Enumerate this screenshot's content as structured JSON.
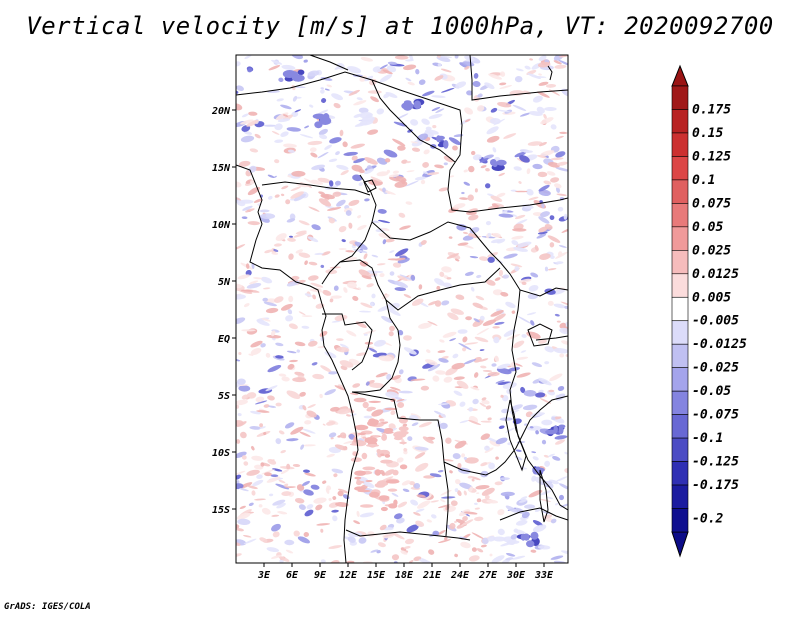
{
  "title": "Vertical velocity [m/s] at 1000hPa, VT: 2020092700",
  "footer": "GrADS: IGES/COLA",
  "map": {
    "lat_labels": [
      "20N",
      "15N",
      "10N",
      "5N",
      "EQ",
      "5S",
      "10S",
      "15S"
    ],
    "lon_labels": [
      "3E",
      "6E",
      "9E",
      "12E",
      "15E",
      "18E",
      "21E",
      "24E",
      "27E",
      "30E",
      "33E"
    ]
  },
  "colorbar": {
    "labels": [
      "0.175",
      "0.15",
      "0.125",
      "0.1",
      "0.075",
      "0.05",
      "0.025",
      "0.0125",
      "0.005",
      "-0.005",
      "-0.0125",
      "-0.025",
      "-0.05",
      "-0.075",
      "-0.1",
      "-0.125",
      "-0.175",
      "-0.2"
    ],
    "colors": [
      "#a01818",
      "#b82222",
      "#cc3030",
      "#dc4646",
      "#e06060",
      "#e87a7a",
      "#f09a9a",
      "#f6bcbc",
      "#fbdcdc",
      "#ffffff",
      "#dcdcfa",
      "#c0c0f2",
      "#a4a4ec",
      "#8484e0",
      "#6868d4",
      "#4c4cc4",
      "#3030b4",
      "#1c1ca0",
      "#101090"
    ],
    "accent_top": "#9a1414",
    "accent_bottom": "#0c0c88"
  }
}
